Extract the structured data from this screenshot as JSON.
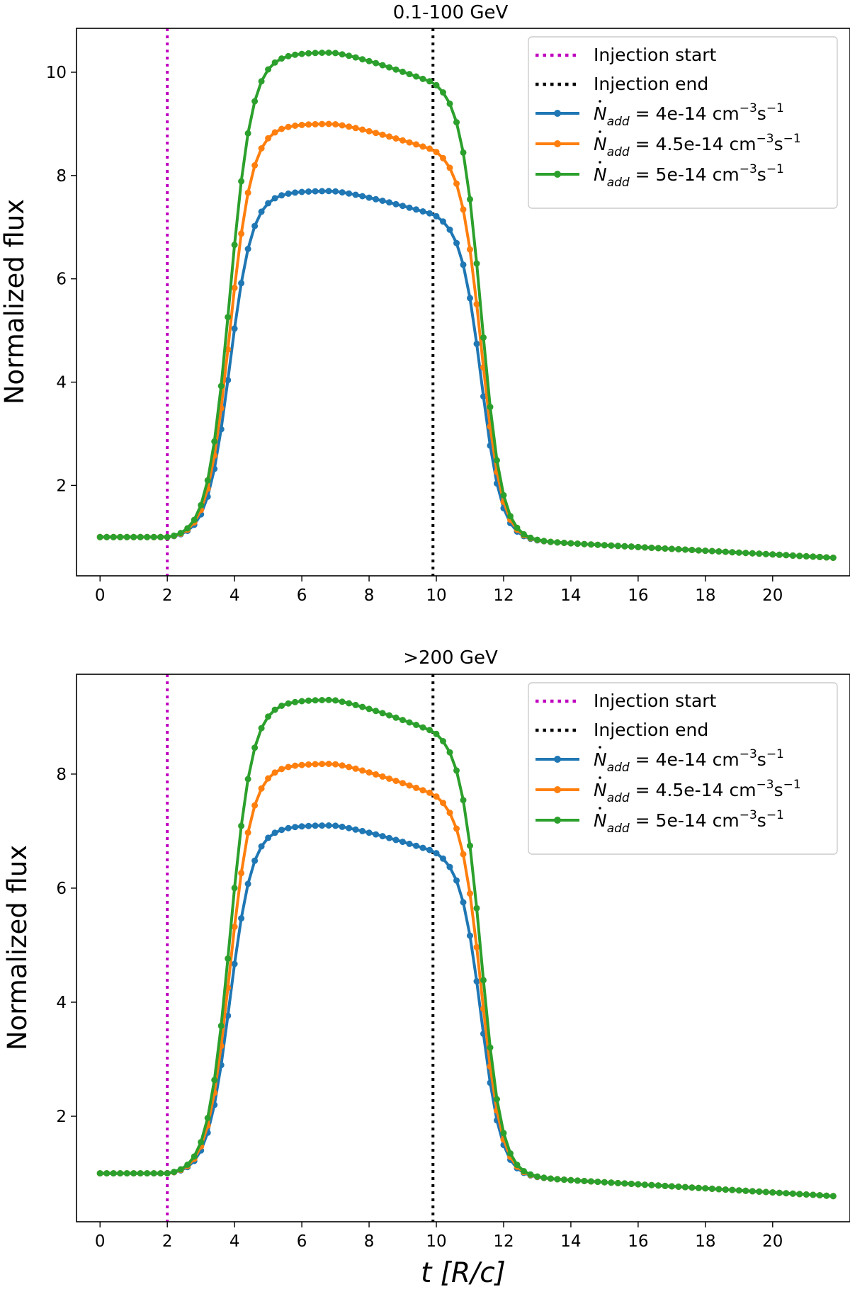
{
  "chart_data": [
    {
      "type": "line",
      "title": "0.1-100 GeV",
      "xlabel": "",
      "ylabel": "Normalized flux",
      "xlim": [
        -0.7,
        22.3
      ],
      "ylim": [
        0.25,
        10.85
      ],
      "xticks": [
        "0",
        "2",
        "4",
        "6",
        "8",
        "10",
        "12",
        "14",
        "16",
        "18",
        "20"
      ],
      "yticks": [
        "2",
        "4",
        "6",
        "8",
        "10"
      ],
      "vlines": [
        {
          "name": "Injection start",
          "x": 2.0,
          "color": "#bf00bf"
        },
        {
          "name": "Injection end",
          "x": 9.9,
          "color": "#000000"
        }
      ],
      "legend": {
        "position": "upper right",
        "entries": [
          "Injection start",
          "Injection end",
          "N_add = 4e-14 cm^-3 s^-1",
          "N_add = 4.5e-14 cm^-3 s^-1",
          "N_add = 5e-14 cm^-3 s^-1"
        ]
      },
      "series": [
        {
          "name": "Ṅ_add = 4e-14 cm⁻³s⁻¹",
          "label_prefix": "N",
          "label_sub": "add",
          "label_mid": " = 4e-14 cm",
          "label_unit_exp1": "−3",
          "label_unit_s": "s",
          "label_unit_exp2": "−1",
          "color": "#1f77b4",
          "peak": 7.7,
          "end_value": 7.25
        },
        {
          "name": "Ṅ_add = 4.5e-14 cm⁻³s⁻¹",
          "label_prefix": "N",
          "label_sub": "add",
          "label_mid": " = 4.5e-14 cm",
          "label_unit_exp1": "−3",
          "label_unit_s": "s",
          "label_unit_exp2": "−1",
          "color": "#ff7f0e",
          "peak": 9.0,
          "end_value": 8.5
        },
        {
          "name": "Ṅ_add = 5e-14 cm⁻³s⁻¹",
          "label_prefix": "N",
          "label_sub": "add",
          "label_mid": " = 5e-14 cm",
          "label_unit_exp1": "−3",
          "label_unit_s": "s",
          "label_unit_exp2": "−1",
          "color": "#2ca02c",
          "peak": 10.38,
          "end_value": 9.8
        }
      ]
    },
    {
      "type": "line",
      "title": ">200 GeV",
      "xlabel": "t [R/c]",
      "ylabel": "Normalized flux",
      "xlim": [
        -0.7,
        22.3
      ],
      "ylim": [
        0.15,
        9.75
      ],
      "xticks": [
        "0",
        "2",
        "4",
        "6",
        "8",
        "10",
        "12",
        "14",
        "16",
        "18",
        "20"
      ],
      "yticks": [
        "2",
        "4",
        "6",
        "8"
      ],
      "vlines": [
        {
          "name": "Injection start",
          "x": 2.0,
          "color": "#bf00bf"
        },
        {
          "name": "Injection end",
          "x": 9.9,
          "color": "#000000"
        }
      ],
      "legend": {
        "position": "upper right",
        "entries": [
          "Injection start",
          "Injection end",
          "N_add = 4e-14 cm^-3 s^-1",
          "N_add = 4.5e-14 cm^-3 s^-1",
          "N_add = 5e-14 cm^-3 s^-1"
        ]
      },
      "series": [
        {
          "name": "Ṅ_add = 4e-14 cm⁻³s⁻¹",
          "label_prefix": "N",
          "label_sub": "add",
          "label_mid": " = 4e-14 cm",
          "label_unit_exp1": "−3",
          "label_unit_s": "s",
          "label_unit_exp2": "−1",
          "color": "#1f77b4",
          "peak": 7.1,
          "end_value": 6.65
        },
        {
          "name": "Ṅ_add = 4.5e-14 cm⁻³s⁻¹",
          "label_prefix": "N",
          "label_sub": "add",
          "label_mid": " = 4.5e-14 cm",
          "label_unit_exp1": "−3",
          "label_unit_s": "s",
          "label_unit_exp2": "−1",
          "color": "#ff7f0e",
          "peak": 8.18,
          "end_value": 7.65
        },
        {
          "name": "Ṅ_add = 5e-14 cm⁻³s⁻¹",
          "label_prefix": "N",
          "label_sub": "add",
          "label_mid": " = 5e-14 cm",
          "label_unit_exp1": "−3",
          "label_unit_s": "s",
          "label_unit_exp2": "−1",
          "color": "#2ca02c",
          "peak": 9.3,
          "end_value": 8.75
        }
      ]
    }
  ],
  "model": {
    "t_start": 0.0,
    "t_end": 21.8,
    "dt": 0.2,
    "baseline": 1.0,
    "rise_start": 2.0,
    "rise_center": 3.85,
    "rise_width": 0.33,
    "decay_end": 9.9,
    "decay_center": 11.35,
    "decay_width": 0.3,
    "tail_start_value": 0.95,
    "tail_end_value": 0.6,
    "peak_time": 6.9
  },
  "legend_labels": {
    "start": "Injection start",
    "end": "Injection end"
  }
}
